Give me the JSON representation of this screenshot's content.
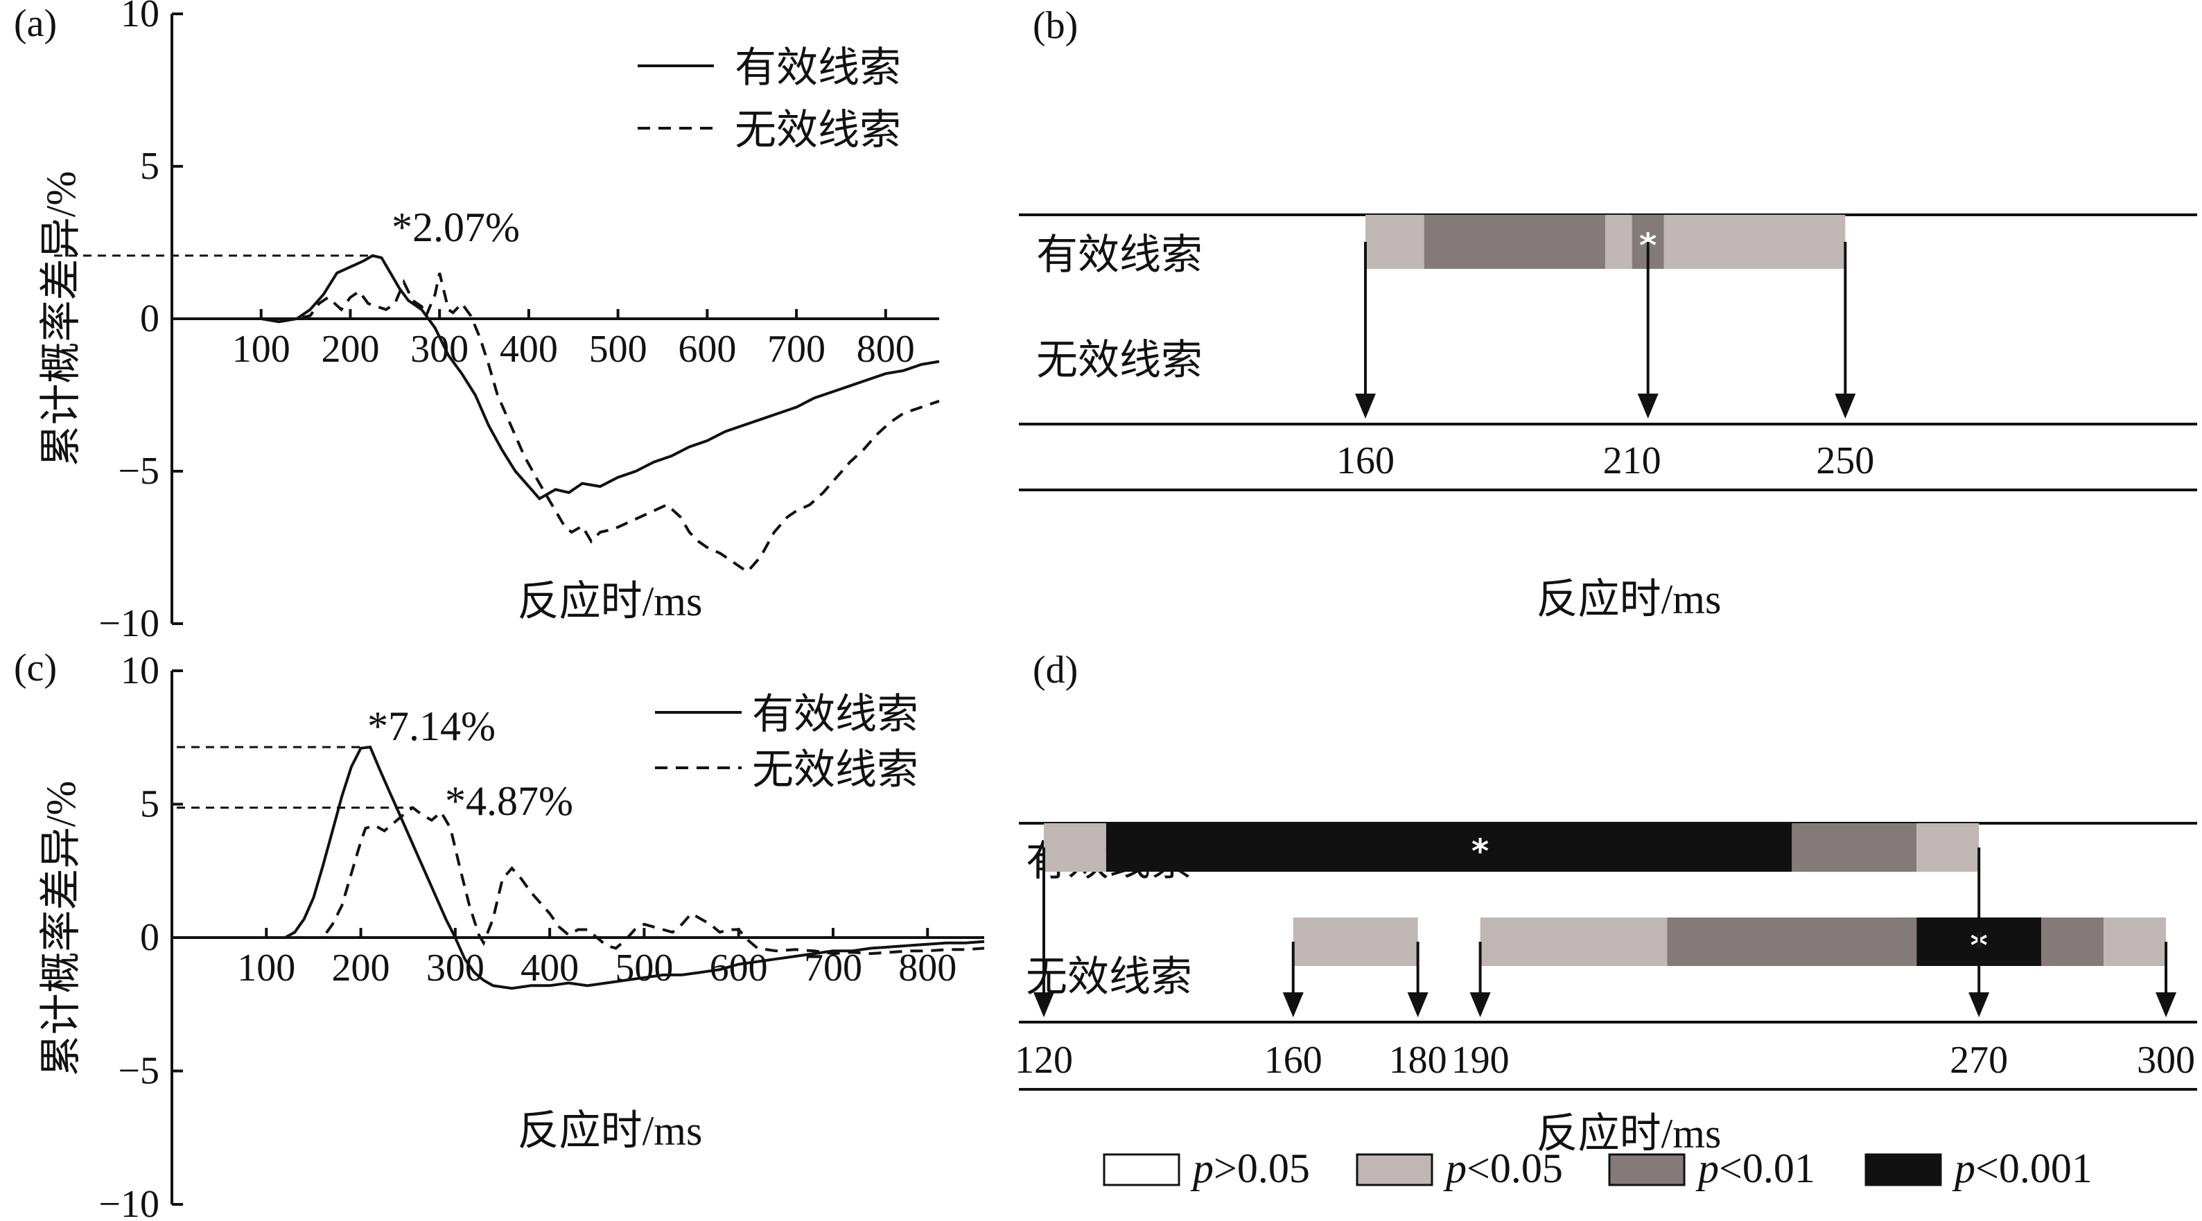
{
  "colors": {
    "p_ns": "#ffffff",
    "p05": "#bfb7b6",
    "p01": "#847a7a",
    "p001": "#111111"
  },
  "chart_data": [
    {
      "panel": "(a)",
      "type": "line",
      "xlabel": "反应时/ms",
      "ylabel": "累计概率差异/%",
      "xlim": [
        0,
        860
      ],
      "ylim": [
        -10,
        10
      ],
      "xticks": [
        "100",
        "200",
        "300",
        "400",
        "500",
        "600",
        "700",
        "800"
      ],
      "yticks": [
        "10",
        "5",
        "0",
        "−5",
        "−10"
      ],
      "annotations": [
        "*2.07%"
      ],
      "series": [
        {
          "name": "有效线索",
          "style": "solid",
          "points": [
            [
              100,
              0
            ],
            [
              120,
              -0.1
            ],
            [
              140,
              0
            ],
            [
              155,
              0.3
            ],
            [
              170,
              0.8
            ],
            [
              185,
              1.5
            ],
            [
              200,
              1.7
            ],
            [
              215,
              1.9
            ],
            [
              225,
              2.07
            ],
            [
              235,
              2.0
            ],
            [
              245,
              1.5
            ],
            [
              255,
              1.0
            ],
            [
              265,
              0.6
            ],
            [
              280,
              0.3
            ],
            [
              295,
              -0.3
            ],
            [
              310,
              -1.2
            ],
            [
              325,
              -1.8
            ],
            [
              340,
              -2.5
            ],
            [
              355,
              -3.5
            ],
            [
              370,
              -4.3
            ],
            [
              385,
              -5.0
            ],
            [
              400,
              -5.5
            ],
            [
              412,
              -5.9
            ],
            [
              430,
              -5.6
            ],
            [
              445,
              -5.7
            ],
            [
              460,
              -5.4
            ],
            [
              480,
              -5.5
            ],
            [
              500,
              -5.2
            ],
            [
              520,
              -5.0
            ],
            [
              540,
              -4.7
            ],
            [
              560,
              -4.5
            ],
            [
              580,
              -4.2
            ],
            [
              600,
              -4.0
            ],
            [
              620,
              -3.7
            ],
            [
              640,
              -3.5
            ],
            [
              660,
              -3.3
            ],
            [
              680,
              -3.1
            ],
            [
              700,
              -2.9
            ],
            [
              720,
              -2.6
            ],
            [
              740,
              -2.4
            ],
            [
              760,
              -2.2
            ],
            [
              780,
              -2.0
            ],
            [
              800,
              -1.8
            ],
            [
              820,
              -1.7
            ],
            [
              840,
              -1.5
            ],
            [
              860,
              -1.4
            ]
          ]
        },
        {
          "name": "无效线索",
          "style": "dashed",
          "points": [
            [
              100,
              0
            ],
            [
              140,
              0
            ],
            [
              155,
              0.1
            ],
            [
              165,
              0.5
            ],
            [
              175,
              0.7
            ],
            [
              190,
              0.3
            ],
            [
              200,
              0.7
            ],
            [
              210,
              0.9
            ],
            [
              220,
              0.5
            ],
            [
              230,
              0.4
            ],
            [
              240,
              0.3
            ],
            [
              250,
              0.5
            ],
            [
              260,
              1.2
            ],
            [
              270,
              0.6
            ],
            [
              280,
              0.4
            ],
            [
              285,
              0.1
            ],
            [
              295,
              0.8
            ],
            [
              300,
              1.5
            ],
            [
              305,
              0.9
            ],
            [
              310,
              0.3
            ],
            [
              315,
              0.2
            ],
            [
              325,
              0.5
            ],
            [
              335,
              0.1
            ],
            [
              345,
              -0.6
            ],
            [
              355,
              -1.5
            ],
            [
              365,
              -2.5
            ],
            [
              380,
              -3.5
            ],
            [
              395,
              -4.5
            ],
            [
              410,
              -5.3
            ],
            [
              420,
              -5.8
            ],
            [
              430,
              -6.3
            ],
            [
              440,
              -6.8
            ],
            [
              448,
              -7.0
            ],
            [
              460,
              -6.8
            ],
            [
              470,
              -7.3
            ],
            [
              480,
              -7.0
            ],
            [
              495,
              -6.9
            ],
            [
              510,
              -6.7
            ],
            [
              525,
              -6.5
            ],
            [
              540,
              -6.3
            ],
            [
              555,
              -6.1
            ],
            [
              570,
              -6.5
            ],
            [
              580,
              -7.0
            ],
            [
              590,
              -7.3
            ],
            [
              600,
              -7.5
            ],
            [
              615,
              -7.7
            ],
            [
              630,
              -8.0
            ],
            [
              645,
              -8.3
            ],
            [
              660,
              -7.8
            ],
            [
              675,
              -7.0
            ],
            [
              690,
              -6.5
            ],
            [
              700,
              -6.3
            ],
            [
              715,
              -6.1
            ],
            [
              730,
              -5.7
            ],
            [
              745,
              -5.2
            ],
            [
              760,
              -4.7
            ],
            [
              775,
              -4.3
            ],
            [
              790,
              -3.8
            ],
            [
              805,
              -3.4
            ],
            [
              820,
              -3.1
            ],
            [
              840,
              -2.9
            ],
            [
              860,
              -2.7
            ]
          ]
        }
      ]
    },
    {
      "panel": "(b)",
      "type": "table",
      "xlabel": "反应时/ms",
      "rows": [
        "有效线索",
        "无效线索"
      ],
      "ticks": [
        "160",
        "210",
        "250"
      ],
      "x_range": [
        95,
        316
      ],
      "bars": [
        {
          "row": "有效线索",
          "segments": [
            {
              "from": 160,
              "to": 171,
              "level": "p05"
            },
            {
              "from": 171,
              "to": 205,
              "level": "p01"
            },
            {
              "from": 205,
              "to": 210,
              "level": "p05"
            },
            {
              "from": 210,
              "to": 216,
              "level": "p01"
            },
            {
              "from": 216,
              "to": 250,
              "level": "p05"
            }
          ],
          "star_at": 213,
          "arrows_at": [
            160,
            213,
            250
          ]
        }
      ]
    },
    {
      "panel": "(c)",
      "type": "line",
      "xlabel": "反应时/ms",
      "ylabel": "累计概率差异/%",
      "xlim": [
        0,
        860
      ],
      "ylim": [
        -10,
        10
      ],
      "xticks": [
        "100",
        "200",
        "300",
        "400",
        "500",
        "600",
        "700",
        "800"
      ],
      "yticks": [
        "10",
        "5",
        "0",
        "−5",
        "−10"
      ],
      "annotations": [
        "*7.14%",
        "*4.87%"
      ],
      "series": [
        {
          "name": "有效线索",
          "style": "solid",
          "points": [
            [
              100,
              0
            ],
            [
              120,
              0
            ],
            [
              130,
              0.2
            ],
            [
              140,
              0.7
            ],
            [
              150,
              1.5
            ],
            [
              160,
              2.7
            ],
            [
              170,
              4.0
            ],
            [
              180,
              5.3
            ],
            [
              190,
              6.4
            ],
            [
              200,
              7.1
            ],
            [
              210,
              7.14
            ],
            [
              220,
              6.3
            ],
            [
              230,
              5.5
            ],
            [
              240,
              4.7
            ],
            [
              250,
              3.9
            ],
            [
              260,
              3.1
            ],
            [
              270,
              2.3
            ],
            [
              280,
              1.5
            ],
            [
              290,
              0.7
            ],
            [
              300,
              0
            ],
            [
              310,
              -0.8
            ],
            [
              320,
              -1.3
            ],
            [
              330,
              -1.6
            ],
            [
              340,
              -1.8
            ],
            [
              360,
              -1.9
            ],
            [
              380,
              -1.8
            ],
            [
              400,
              -1.8
            ],
            [
              420,
              -1.7
            ],
            [
              440,
              -1.8
            ],
            [
              460,
              -1.7
            ],
            [
              480,
              -1.6
            ],
            [
              500,
              -1.5
            ],
            [
              520,
              -1.4
            ],
            [
              540,
              -1.4
            ],
            [
              560,
              -1.3
            ],
            [
              580,
              -1.2
            ],
            [
              600,
              -1.0
            ],
            [
              620,
              -0.9
            ],
            [
              640,
              -0.8
            ],
            [
              660,
              -0.7
            ],
            [
              680,
              -0.6
            ],
            [
              700,
              -0.5
            ],
            [
              720,
              -0.5
            ],
            [
              740,
              -0.4
            ],
            [
              760,
              -0.35
            ],
            [
              780,
              -0.3
            ],
            [
              800,
              -0.25
            ],
            [
              820,
              -0.2
            ],
            [
              840,
              -0.2
            ],
            [
              860,
              -0.15
            ]
          ]
        },
        {
          "name": "无效线索",
          "style": "dashed",
          "points": [
            [
              100,
              0
            ],
            [
              160,
              0
            ],
            [
              170,
              0.5
            ],
            [
              180,
              1.2
            ],
            [
              190,
              2.4
            ],
            [
              200,
              3.6
            ],
            [
              205,
              4.1
            ],
            [
              215,
              4.2
            ],
            [
              225,
              4.0
            ],
            [
              235,
              4.3
            ],
            [
              245,
              4.6
            ],
            [
              255,
              4.87
            ],
            [
              265,
              4.6
            ],
            [
              275,
              4.4
            ],
            [
              285,
              4.7
            ],
            [
              295,
              4.1
            ],
            [
              305,
              2.6
            ],
            [
              315,
              1.2
            ],
            [
              325,
              0.1
            ],
            [
              330,
              -0.2
            ],
            [
              340,
              0.7
            ],
            [
              350,
              2.2
            ],
            [
              360,
              2.6
            ],
            [
              370,
              2.2
            ],
            [
              380,
              1.7
            ],
            [
              390,
              1.3
            ],
            [
              400,
              0.9
            ],
            [
              410,
              0.4
            ],
            [
              420,
              0.1
            ],
            [
              430,
              0.3
            ],
            [
              440,
              0.3
            ],
            [
              450,
              0
            ],
            [
              460,
              -0.3
            ],
            [
              470,
              -0.4
            ],
            [
              480,
              -0.1
            ],
            [
              490,
              0.3
            ],
            [
              500,
              0.5
            ],
            [
              510,
              0.4
            ],
            [
              520,
              0.3
            ],
            [
              530,
              0.2
            ],
            [
              540,
              0.5
            ],
            [
              550,
              0.9
            ],
            [
              560,
              0.7
            ],
            [
              570,
              0.5
            ],
            [
              580,
              0.2
            ],
            [
              590,
              0.3
            ],
            [
              600,
              0.3
            ],
            [
              610,
              -0.1
            ],
            [
              620,
              -0.4
            ],
            [
              640,
              -0.5
            ],
            [
              660,
              -0.45
            ],
            [
              680,
              -0.5
            ],
            [
              700,
              -0.6
            ],
            [
              720,
              -0.55
            ],
            [
              740,
              -0.6
            ],
            [
              760,
              -0.55
            ],
            [
              780,
              -0.5
            ],
            [
              800,
              -0.5
            ],
            [
              820,
              -0.45
            ],
            [
              840,
              -0.45
            ],
            [
              860,
              -0.4
            ]
          ]
        }
      ]
    },
    {
      "panel": "(d)",
      "type": "table",
      "xlabel": "反应时/ms",
      "rows": [
        "有效线索",
        "无效线索"
      ],
      "ticks": [
        "120",
        "160",
        "180",
        "190",
        "270",
        "300"
      ],
      "x_range": [
        116,
        305
      ],
      "bars": [
        {
          "row": "有效线索",
          "segments": [
            {
              "from": 120,
              "to": 130,
              "level": "p05"
            },
            {
              "from": 130,
              "to": 240,
              "level": "p001"
            },
            {
              "from": 240,
              "to": 260,
              "level": "p01"
            },
            {
              "from": 260,
              "to": 270,
              "level": "p05"
            }
          ],
          "star_at": 190,
          "arrows_at": [
            120,
            270
          ]
        },
        {
          "row": "无效线索",
          "segments": [
            {
              "from": 160,
              "to": 180,
              "level": "p05"
            },
            {
              "from": 190,
              "to": 220,
              "level": "p05"
            },
            {
              "from": 220,
              "to": 260,
              "level": "p01"
            },
            {
              "from": 260,
              "to": 280,
              "level": "p001"
            },
            {
              "from": 280,
              "to": 290,
              "level": "p01"
            },
            {
              "from": 290,
              "to": 300,
              "level": "p05"
            }
          ],
          "star_at": 270,
          "arrows_at": [
            160,
            180,
            190,
            300
          ]
        }
      ]
    }
  ],
  "legend_d": [
    {
      "italic": "p",
      "rest": ">0.05",
      "level": "p_ns"
    },
    {
      "italic": "p",
      "rest": "<0.05",
      "level": "p05"
    },
    {
      "italic": "p",
      "rest": "<0.01",
      "level": "p01"
    },
    {
      "italic": "p",
      "rest": "<0.001",
      "level": "p001"
    }
  ]
}
